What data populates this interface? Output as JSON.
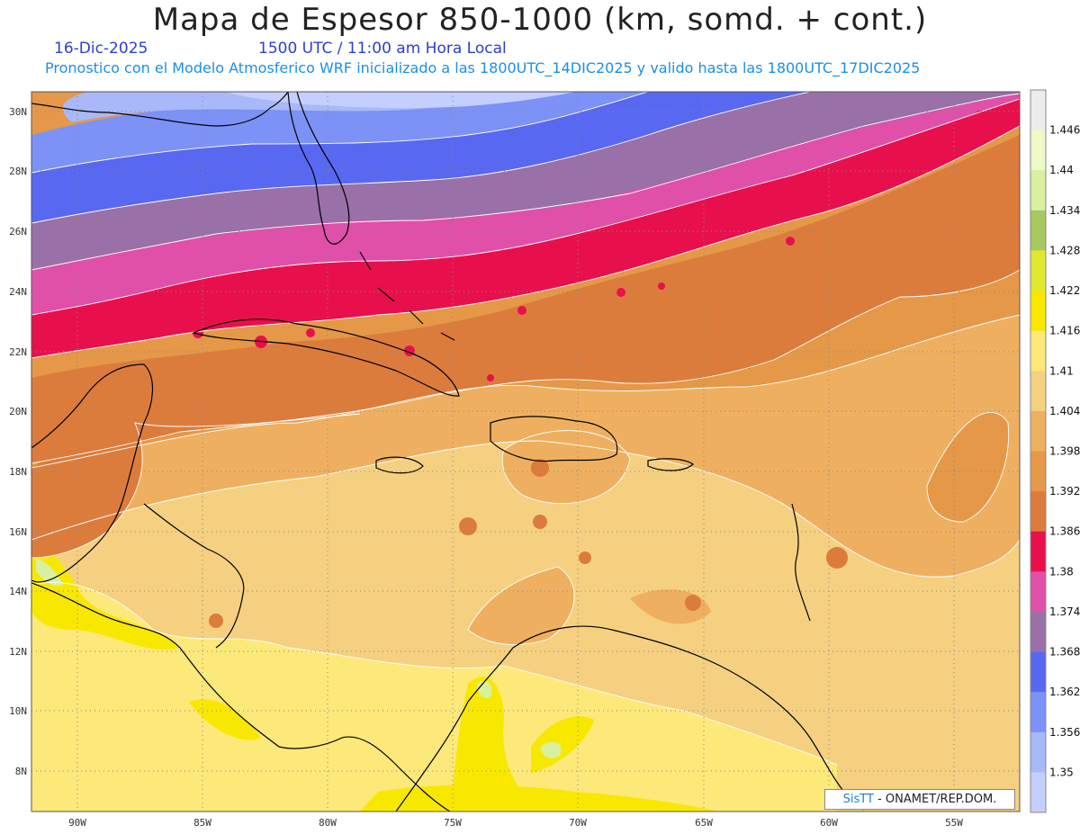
{
  "title": "Mapa de Espesor 850-1000 (km, somd. + cont.)",
  "date": "16-Dic-2025",
  "time": "1500 UTC / 11:00 am Hora Local",
  "forecast": "Pronostico con el Modelo Atmosferico WRF inicializado a las 1800UTC_14DIC2025 y valido hasta las  1800UTC_17DIC2025",
  "credit": {
    "logo": "SisTT",
    "text": "- ONAMET/REP.DOM."
  },
  "lat_labels": [
    "30N",
    "28N",
    "26N",
    "24N",
    "22N",
    "20N",
    "18N",
    "16N",
    "14N",
    "12N",
    "10N",
    "8N"
  ],
  "lon_labels": [
    "90W",
    "85W",
    "80W",
    "75W",
    "70W",
    "65W",
    "60W",
    "55W"
  ],
  "colorbar": {
    "labels": [
      "1.446",
      "1.44",
      "1.434",
      "1.428",
      "1.422",
      "1.416",
      "1.41",
      "1.404",
      "1.398",
      "1.392",
      "1.386",
      "1.38",
      "1.374",
      "1.368",
      "1.362",
      "1.356",
      "1.35"
    ],
    "colors": [
      "#ececec",
      "#eef8c8",
      "#d8f0a0",
      "#a8c860",
      "#e0e830",
      "#f8e800",
      "#fde87a",
      "#f5d080",
      "#eeb060",
      "#e49848",
      "#dc7c3c",
      "#e8104c",
      "#e050a8",
      "#9a70a8",
      "#5868f0",
      "#7c92f6",
      "#a8b8f8",
      "#c4ceff"
    ]
  },
  "legend_alt": "1.386"
}
